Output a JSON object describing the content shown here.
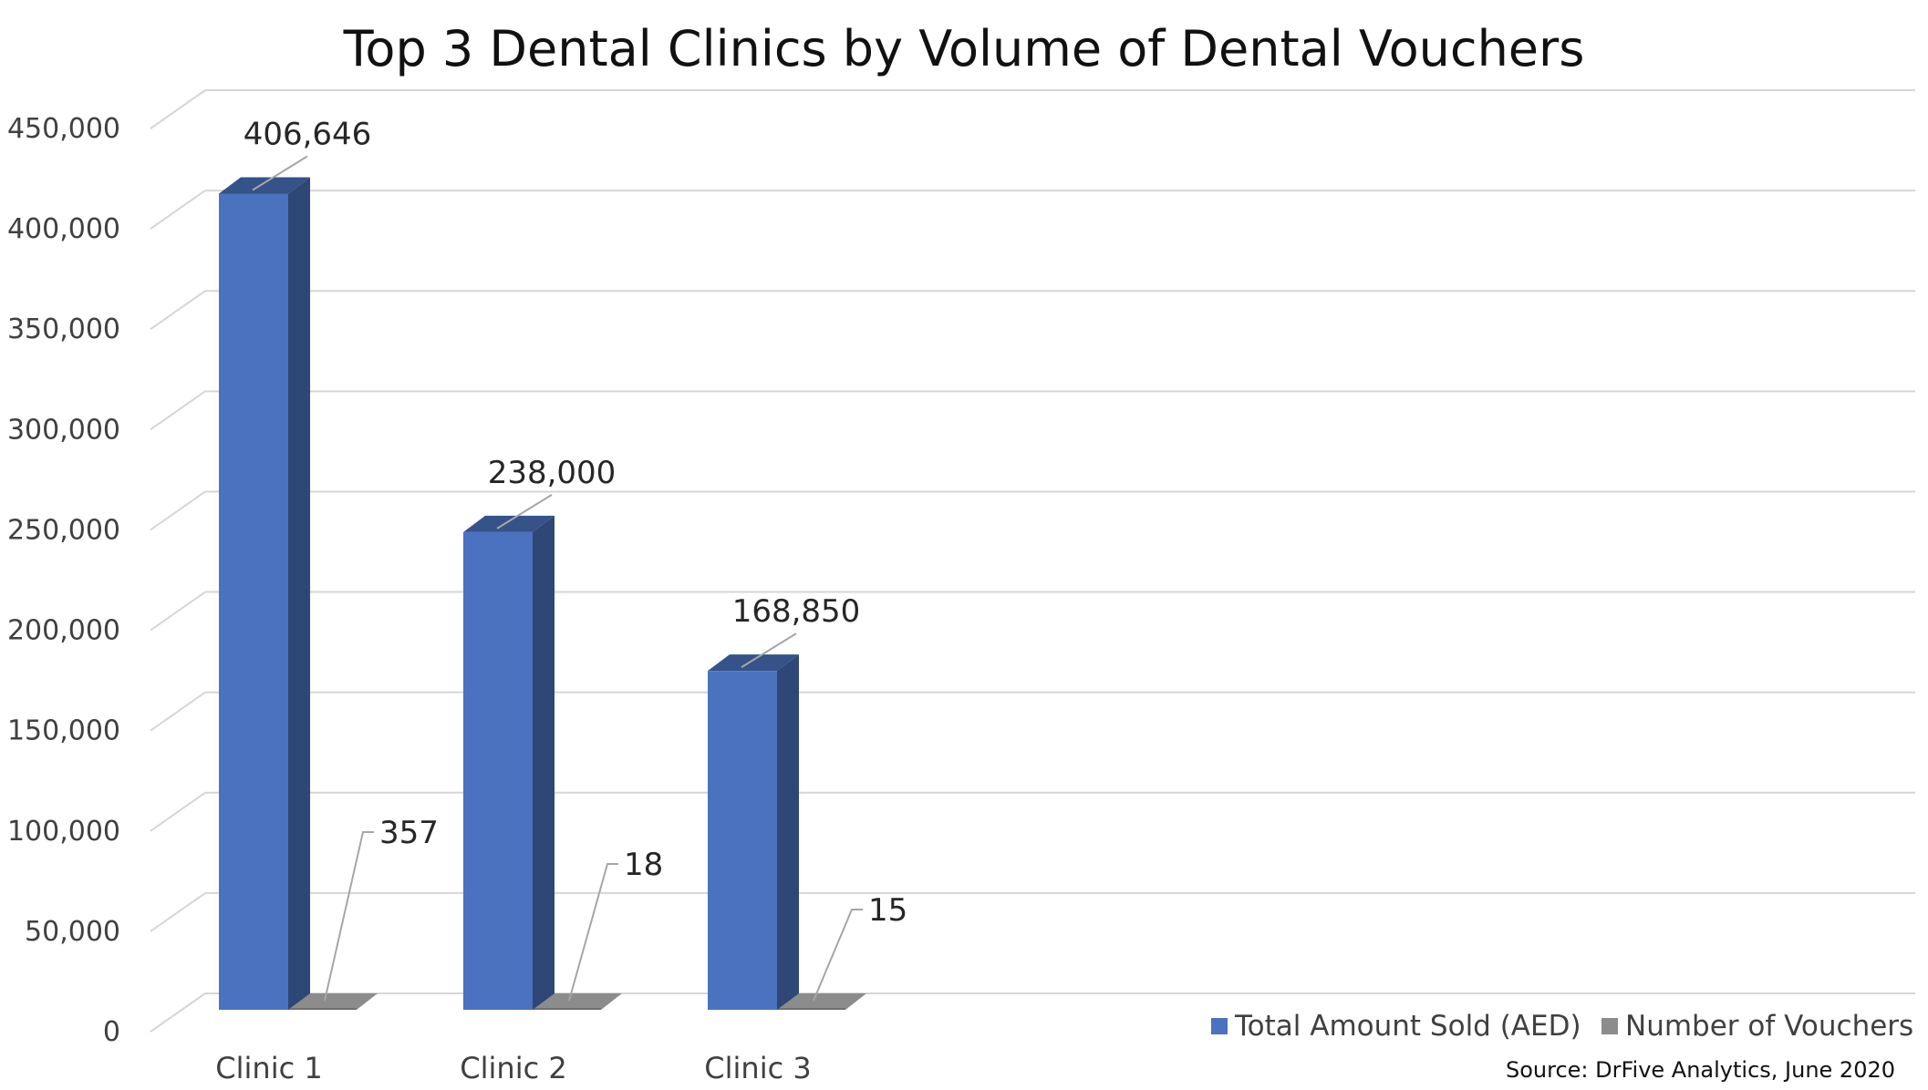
{
  "chart_data": {
    "type": "bar",
    "title": "Top 3 Dental Clinics by Volume of Dental Vouchers",
    "categories": [
      "Clinic 1",
      "Clinic 2",
      "Clinic 3"
    ],
    "series": [
      {
        "name": "Total Amount Sold (AED)",
        "values": [
          406646,
          238000,
          168850
        ],
        "labels": [
          "406,646",
          "238,000",
          "168,850"
        ],
        "color": "#4A72BE"
      },
      {
        "name": "Number of Vouchers",
        "values": [
          357,
          18,
          15
        ],
        "labels": [
          "357",
          "18",
          "15"
        ],
        "color": "#8C8C8C"
      }
    ],
    "ylim": [
      0,
      450000
    ],
    "yticks": [
      0,
      50000,
      100000,
      150000,
      200000,
      250000,
      300000,
      350000,
      400000,
      450000
    ],
    "ytick_labels": [
      "0",
      "50,000",
      "100,000",
      "150,000",
      "200,000",
      "250,000",
      "300,000",
      "350,000",
      "400,000",
      "450,000"
    ],
    "grid": true,
    "legend": "bottom-right",
    "style": "3d-column"
  },
  "source_note": "Source: DrFive Analytics, June 2020"
}
